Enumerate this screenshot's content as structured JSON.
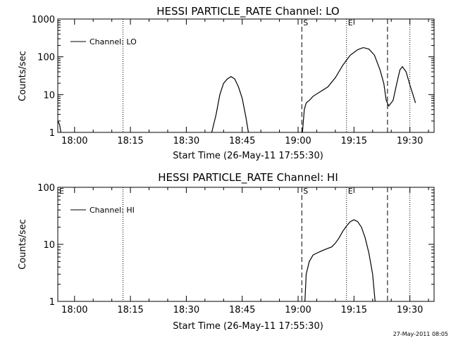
{
  "footer_timestamp": "27-May-2011 08:05",
  "chart_data": [
    {
      "type": "line",
      "title": "HESSI PARTICLE_RATE Channel: LO",
      "xlabel": "Start Time (26-May-11 17:55:30)",
      "ylabel": "Counts/sec",
      "yscale": "log",
      "ylim": [
        1,
        1000
      ],
      "xlim": [
        "17:55:30",
        "19:36:30"
      ],
      "x_ticks": [
        "18:00",
        "18:15",
        "18:30",
        "18:45",
        "19:00",
        "19:15",
        "19:30"
      ],
      "y_ticks": [
        "1",
        "10",
        "100",
        "1000"
      ],
      "legend": {
        "position": "top-left",
        "entries": [
          "Channel: LO"
        ]
      },
      "markers": [
        {
          "time": "18:13",
          "label": "",
          "style": "dotted"
        },
        {
          "time": "19:01",
          "label": "S",
          "style": "dashed"
        },
        {
          "time": "19:13",
          "label": "E",
          "style": "dotted"
        },
        {
          "time": "19:24",
          "label": "",
          "style": "dashed"
        },
        {
          "time": "19:30",
          "label": "",
          "style": "dotted"
        }
      ],
      "series": [
        {
          "name": "Channel: LO",
          "segments": [
            [
              [
                "17:55:30",
                2.0
              ],
              [
                "17:56:00",
                1.6
              ],
              [
                "17:56:20",
                1.0
              ]
            ],
            [
              [
                "18:36:50",
                1.0
              ],
              [
                "18:38:00",
                3
              ],
              [
                "18:39:00",
                10
              ],
              [
                "18:40:00",
                20
              ],
              [
                "18:41:00",
                26
              ],
              [
                "18:42:00",
                30
              ],
              [
                "18:43:00",
                26
              ],
              [
                "18:44:00",
                16
              ],
              [
                "18:45:00",
                8
              ],
              [
                "18:46:00",
                2.5
              ],
              [
                "18:46:40",
                1.0
              ]
            ],
            [
              [
                "19:01:10",
                1.0
              ],
              [
                "19:01:40",
                4
              ],
              [
                "19:02:10",
                6
              ],
              [
                "19:03:00",
                7
              ],
              [
                "19:04:00",
                9
              ],
              [
                "19:06:00",
                12
              ],
              [
                "19:08:00",
                16
              ],
              [
                "19:10:00",
                28
              ],
              [
                "19:12:00",
                60
              ],
              [
                "19:14:00",
                110
              ],
              [
                "19:16:00",
                155
              ],
              [
                "19:17:30",
                175
              ],
              [
                "19:19:00",
                160
              ],
              [
                "19:20:30",
                110
              ],
              [
                "19:22:00",
                45
              ],
              [
                "19:23:00",
                20
              ],
              [
                "19:23:40",
                7
              ],
              [
                "19:24:20",
                5
              ],
              [
                "19:25:30",
                7
              ],
              [
                "19:26:30",
                20
              ],
              [
                "19:27:20",
                45
              ],
              [
                "19:28:00",
                55
              ],
              [
                "19:29:00",
                40
              ],
              [
                "19:30:00",
                18
              ],
              [
                "19:30:50",
                10
              ],
              [
                "19:31:30",
                6
              ]
            ]
          ]
        }
      ]
    },
    {
      "type": "line",
      "title": "HESSI PARTICLE_RATE Channel: HI",
      "xlabel": "Start Time (26-May-11 17:55:30)",
      "ylabel": "Counts/sec",
      "yscale": "log",
      "ylim": [
        1,
        100
      ],
      "xlim": [
        "17:55:30",
        "19:36:30"
      ],
      "x_ticks": [
        "18:00",
        "18:15",
        "18:30",
        "18:45",
        "19:00",
        "19:15",
        "19:30"
      ],
      "y_ticks": [
        "1",
        "10",
        "100"
      ],
      "legend": {
        "position": "top-left",
        "entries": [
          "Channel: HI"
        ]
      },
      "markers": [
        {
          "time": "17:55:30",
          "label": "E",
          "style": "none"
        },
        {
          "time": "18:13",
          "label": "",
          "style": "dotted"
        },
        {
          "time": "19:01",
          "label": "S",
          "style": "dashed"
        },
        {
          "time": "19:13",
          "label": "E",
          "style": "dotted"
        },
        {
          "time": "19:24",
          "label": "",
          "style": "dashed"
        },
        {
          "time": "19:30",
          "label": "",
          "style": "dotted"
        }
      ],
      "series": [
        {
          "name": "Channel: HI",
          "segments": [
            [
              [
                "19:01:50",
                1.0
              ],
              [
                "19:02:10",
                3
              ],
              [
                "19:03:00",
                5
              ],
              [
                "19:04:00",
                6.5
              ],
              [
                "19:05:00",
                7
              ],
              [
                "19:06:00",
                7.5
              ],
              [
                "19:07:00",
                8
              ],
              [
                "19:08:00",
                8.5
              ],
              [
                "19:09:00",
                9
              ],
              [
                "19:10:00",
                10.5
              ],
              [
                "19:11:00",
                13
              ],
              [
                "19:12:00",
                17
              ],
              [
                "19:13:00",
                21
              ],
              [
                "19:14:00",
                25
              ],
              [
                "19:15:00",
                27
              ],
              [
                "19:16:00",
                25
              ],
              [
                "19:17:00",
                20
              ],
              [
                "19:18:00",
                13
              ],
              [
                "19:19:00",
                7
              ],
              [
                "19:20:00",
                3
              ],
              [
                "19:20:40",
                1.0
              ]
            ]
          ]
        }
      ]
    }
  ]
}
